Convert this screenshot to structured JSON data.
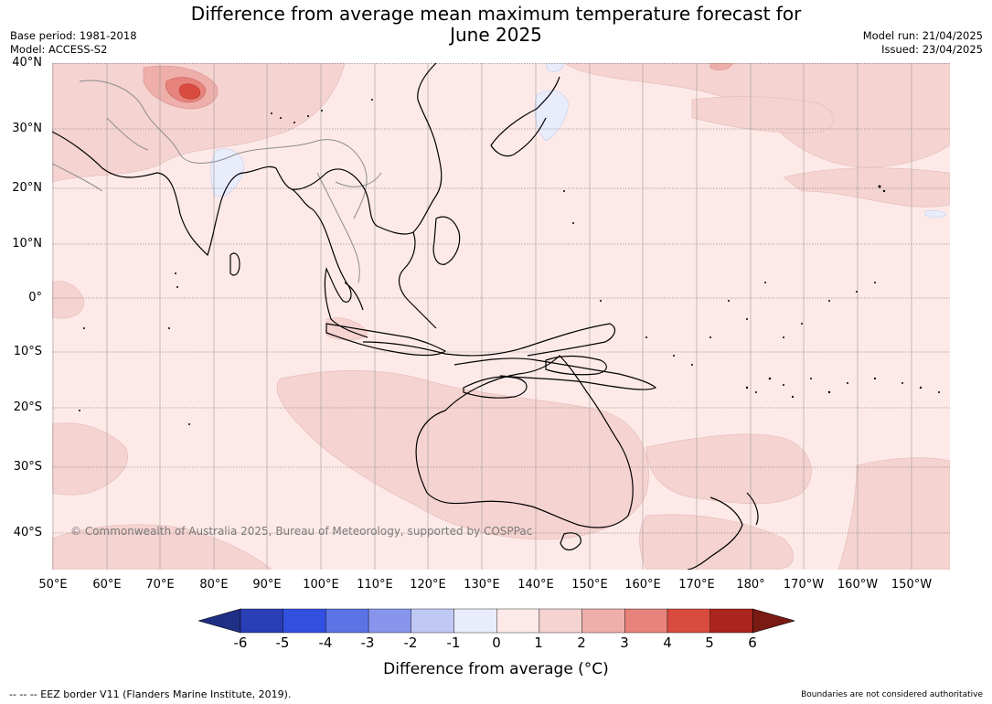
{
  "title_line1": "Difference from average mean maximum temperature forecast for",
  "title_line2": "June 2025",
  "base_period": "Base period: 1981-2018",
  "model": "Model: ACCESS-S2",
  "model_run": "Model run: 21/04/2025",
  "issued": "Issued: 23/04/2025",
  "lat_labels": [
    "40°N",
    "30°N",
    "20°N",
    "10°N",
    "0°",
    "10°S",
    "20°S",
    "30°S",
    "40°S"
  ],
  "lon_labels": [
    "50°E",
    "60°E",
    "70°E",
    "80°E",
    "90°E",
    "100°E",
    "110°E",
    "120°E",
    "130°E",
    "140°E",
    "150°E",
    "160°E",
    "170°E",
    "180°",
    "170°W",
    "160°W",
    "150°W"
  ],
  "copyright": "© Commonwealth of Australia 2025, Bureau of Meteorology, supported by COSPPac",
  "colorbar": {
    "ticks": [
      "-6",
      "-5",
      "-4",
      "-3",
      "-2",
      "-1",
      "0",
      "1",
      "2",
      "3",
      "4",
      "5",
      "6"
    ],
    "colors": [
      "#1f2f86",
      "#2a3eb6",
      "#3150e0",
      "#5c73e6",
      "#8796ec",
      "#c0c9f4",
      "#e8ecfb",
      "#fdeae8",
      "#f5d3d1",
      "#eeaeaa",
      "#e7837c",
      "#d94b3f",
      "#a9251d",
      "#7a1a14"
    ],
    "label": "Difference from average (°C)"
  },
  "footer_left": "--  --  -- EEZ border V11 (Flanders Marine Institute, 2019).",
  "footer_right": "Boundaries are not considered authoritative",
  "map_colors": {
    "ocean_base": "#fdeae8",
    "warm_1_2": "#f5d3d1",
    "warm_2_3": "#eeaeaa",
    "warm_3_4": "#e7837c",
    "warm_4_5": "#d94b3f",
    "cool_0_1": "#e8ecfb",
    "coast": "#000000",
    "border": "#8c8c8c",
    "grid": "#555555"
  }
}
